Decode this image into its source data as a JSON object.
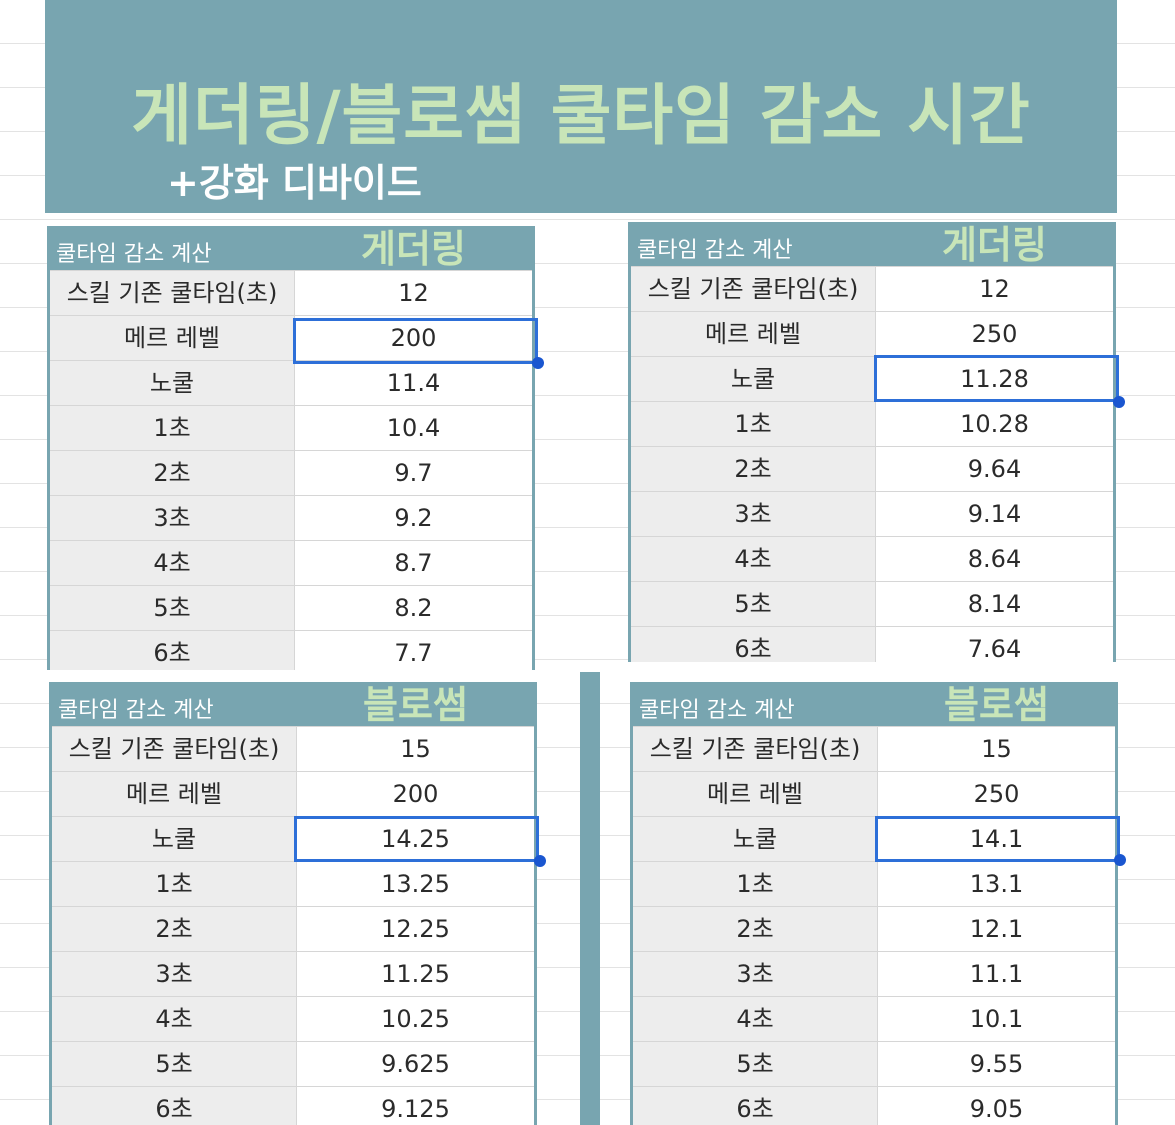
{
  "banner": {
    "title": "게더링/블로썸 쿨타임 감소 시간",
    "subtitle": "+강화 디바이드"
  },
  "colors": {
    "header_bg": "#78a5b0",
    "header_text": "#c8e5b8",
    "selection": "#2d6fd8"
  },
  "tables": [
    {
      "header_label": "쿨타임 감소 계산",
      "skill_name": "게더링",
      "rows": [
        {
          "label": "스킬 기존 쿨타임(초)",
          "value": "12"
        },
        {
          "label": "메르 레벨",
          "value": "200"
        },
        {
          "label": "노쿨",
          "value": "11.4"
        },
        {
          "label": "1초",
          "value": "10.4"
        },
        {
          "label": "2초",
          "value": "9.7"
        },
        {
          "label": "3초",
          "value": "9.2"
        },
        {
          "label": "4초",
          "value": "8.7"
        },
        {
          "label": "5초",
          "value": "8.2"
        },
        {
          "label": "6초",
          "value": "7.7"
        }
      ]
    },
    {
      "header_label": "쿨타임 감소 계산",
      "skill_name": "게더링",
      "rows": [
        {
          "label": "스킬 기존 쿨타임(초)",
          "value": "12"
        },
        {
          "label": "메르 레벨",
          "value": "250"
        },
        {
          "label": "노쿨",
          "value": "11.28"
        },
        {
          "label": "1초",
          "value": "10.28"
        },
        {
          "label": "2초",
          "value": "9.64"
        },
        {
          "label": "3초",
          "value": "9.14"
        },
        {
          "label": "4초",
          "value": "8.64"
        },
        {
          "label": "5초",
          "value": "8.14"
        },
        {
          "label": "6초",
          "value": "7.64"
        }
      ]
    },
    {
      "header_label": "쿨타임 감소 계산",
      "skill_name": "블로썸",
      "rows": [
        {
          "label": "스킬 기존 쿨타임(초)",
          "value": "15"
        },
        {
          "label": "메르 레벨",
          "value": "200"
        },
        {
          "label": "노쿨",
          "value": "14.25"
        },
        {
          "label": "1초",
          "value": "13.25"
        },
        {
          "label": "2초",
          "value": "12.25"
        },
        {
          "label": "3초",
          "value": "11.25"
        },
        {
          "label": "4초",
          "value": "10.25"
        },
        {
          "label": "5초",
          "value": "9.625"
        },
        {
          "label": "6초",
          "value": "9.125"
        }
      ]
    },
    {
      "header_label": "쿨타임 감소 계산",
      "skill_name": "블로썸",
      "rows": [
        {
          "label": "스킬 기존 쿨타임(초)",
          "value": "15"
        },
        {
          "label": "메르 레벨",
          "value": "250"
        },
        {
          "label": "노쿨",
          "value": "14.1"
        },
        {
          "label": "1초",
          "value": "13.1"
        },
        {
          "label": "2초",
          "value": "12.1"
        },
        {
          "label": "3초",
          "value": "11.1"
        },
        {
          "label": "4초",
          "value": "10.1"
        },
        {
          "label": "5초",
          "value": "9.55"
        },
        {
          "label": "6초",
          "value": "9.05"
        }
      ]
    }
  ]
}
